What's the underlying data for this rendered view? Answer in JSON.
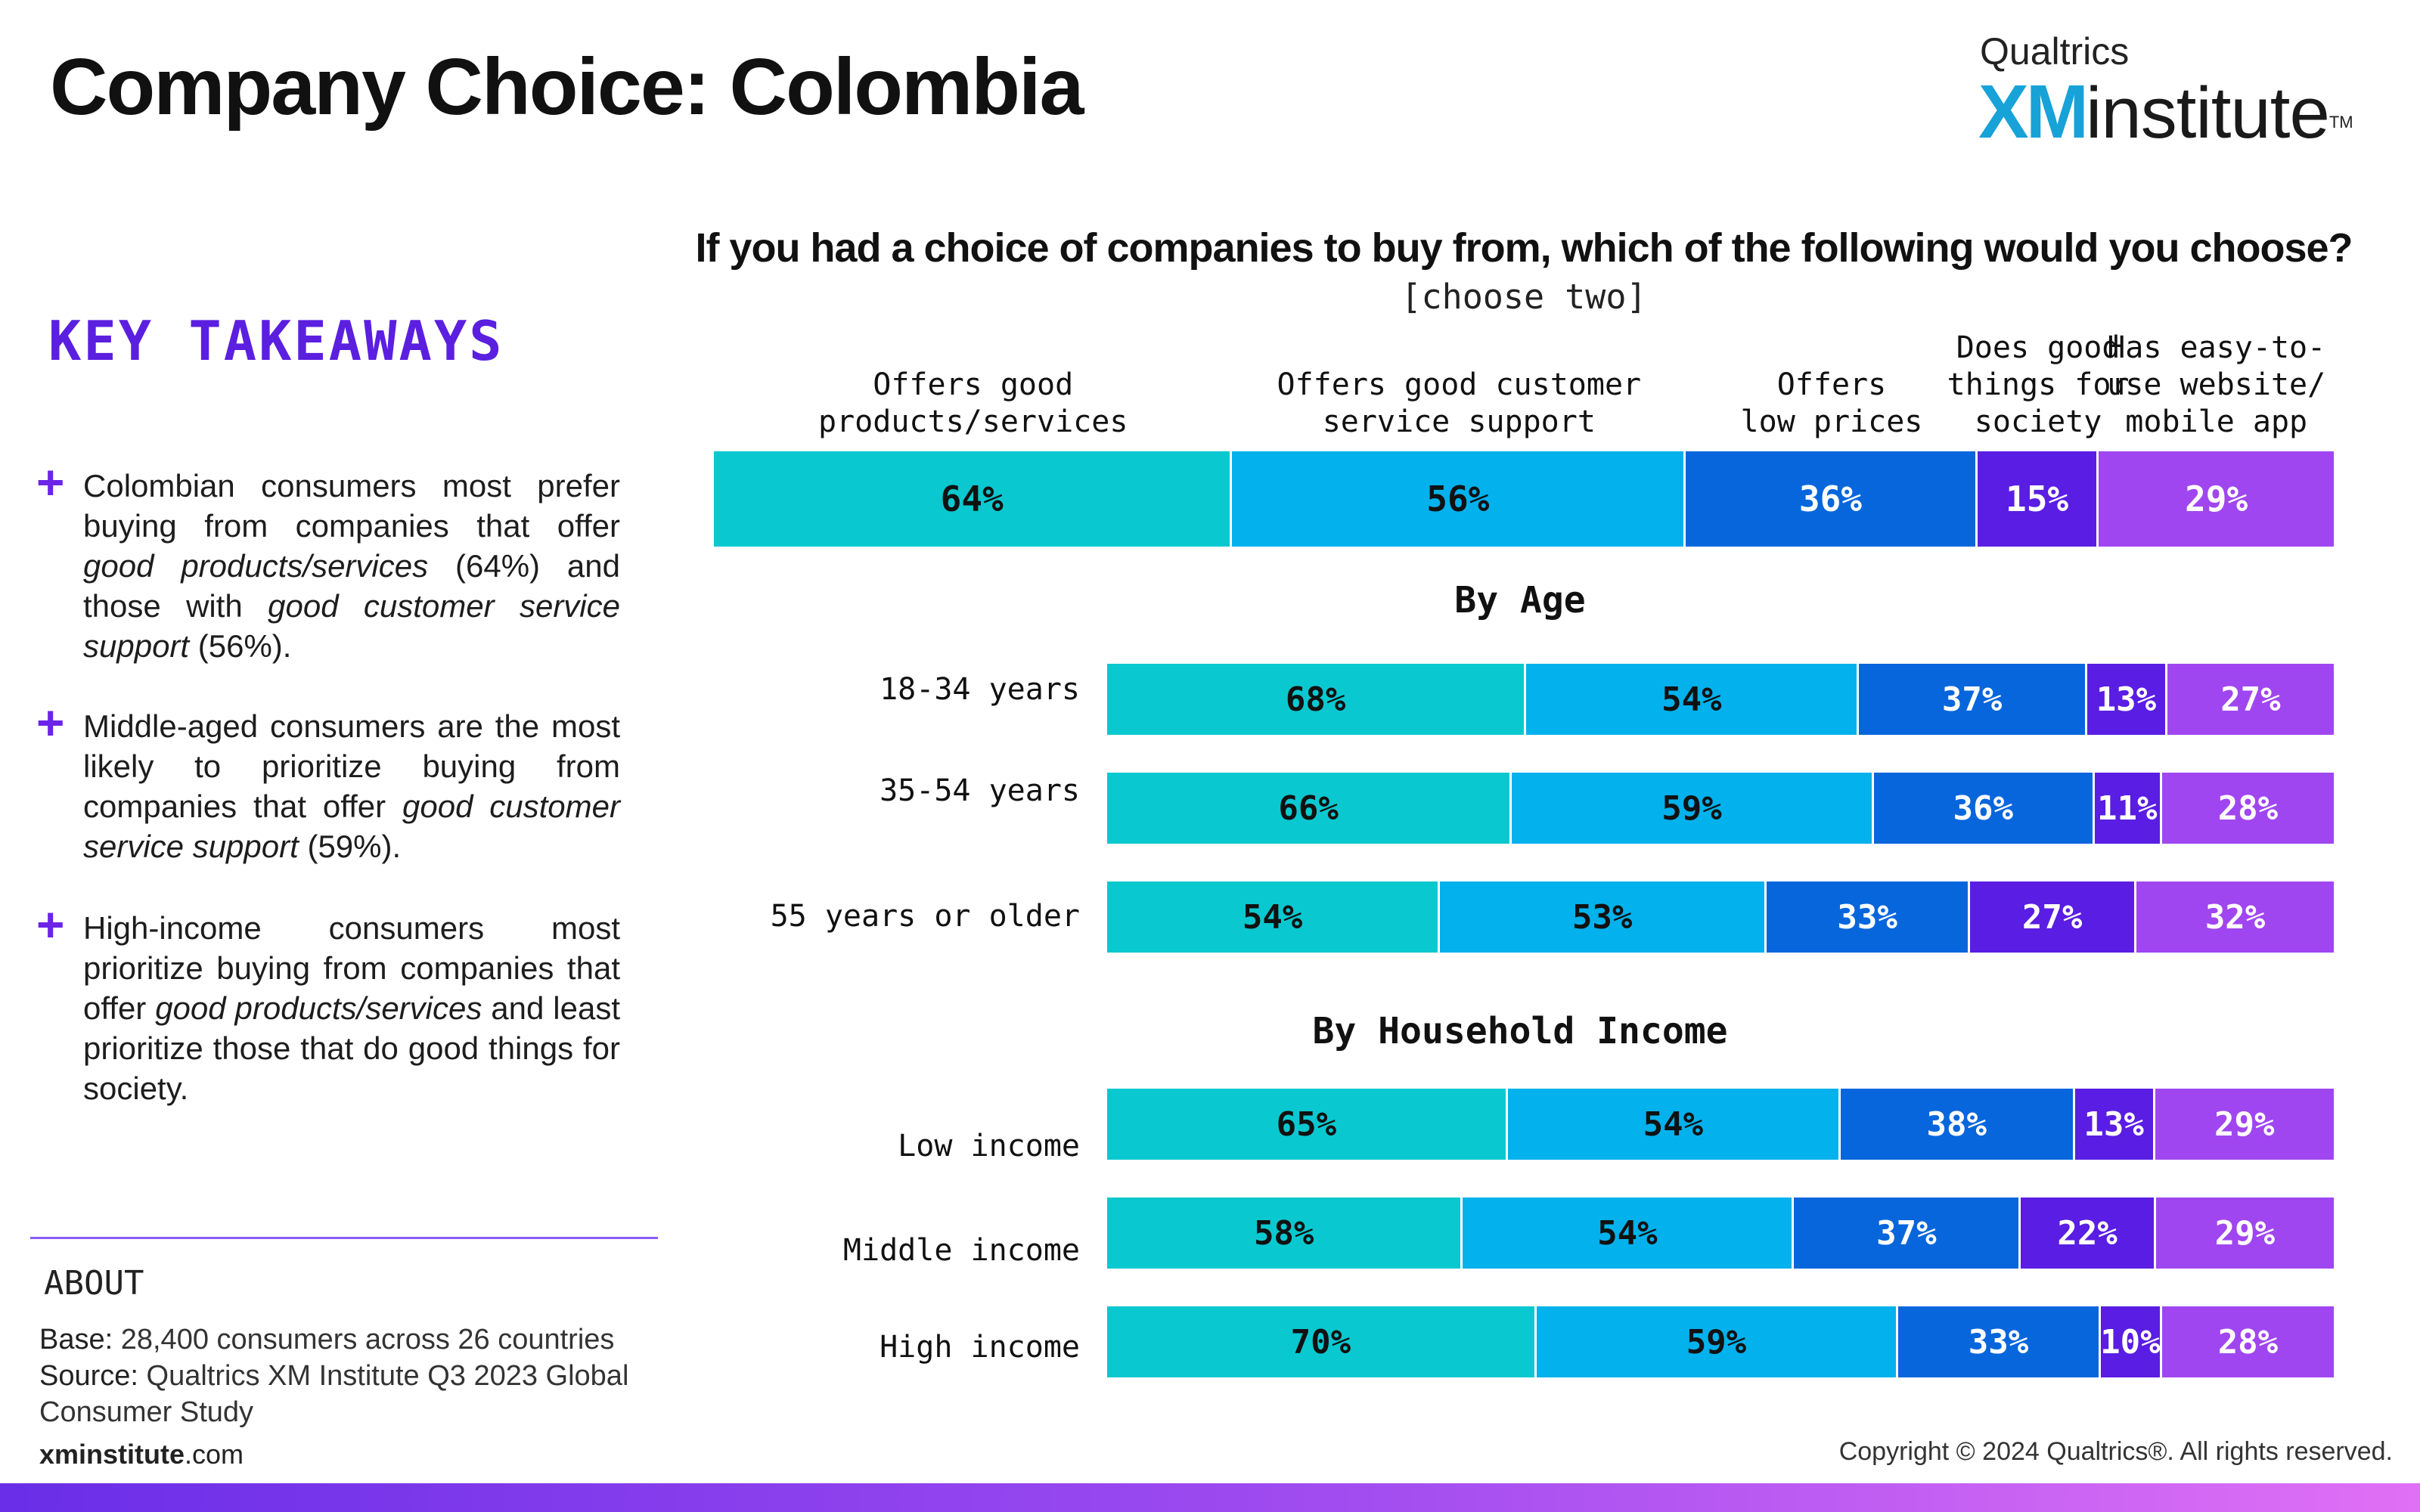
{
  "header": {
    "title": "Company Choice: Colombia",
    "logo_brand": "Qualtrics",
    "logo_xm": "XM",
    "logo_institute": "institute",
    "logo_tm": "TM"
  },
  "takeaways": {
    "heading": "KEY TAKEAWAYS",
    "items": [
      {
        "a": "Colombian consumers most prefer buying from companies that offer ",
        "b": "good products/services",
        "c": " (64%) and those with ",
        "d": "good customer service support",
        "e": " (56%)."
      },
      {
        "a": "Middle-aged consumers are the most likely to prioritize buying from companies that offer ",
        "b": "good customer service support",
        "c": " (59%)."
      },
      {
        "a": "High-income consumers most prioritize buying from companies that offer ",
        "b": "good products/services",
        "c": " and least prioritize those that do good things for society."
      }
    ]
  },
  "about": {
    "heading": "ABOUT",
    "base_label": "Base:",
    "base_text": " 28,400 consumers across 26 countries",
    "source_label": "Source:",
    "source_text": " Qualtrics XM Institute Q3 2023 Global Consumer Study",
    "site_bold": "xminstitute",
    "site_rest": ".com"
  },
  "footer": {
    "copyright": "Copyright © 2024 Qualtrics®. All rights reserved."
  },
  "chart_data": {
    "type": "bar",
    "stacked": true,
    "orientation": "horizontal",
    "title": "If you had a choice of companies to buy from, which of the following would you choose?",
    "subtitle": "[choose two]",
    "category_lines": [
      [
        "Offers good",
        "products/services"
      ],
      [
        "Offers good customer",
        "service support"
      ],
      [
        "Offers",
        "low prices"
      ],
      [
        "Does good",
        "things for",
        "society"
      ],
      [
        "Has easy-to-",
        "use website/",
        "mobile app"
      ]
    ],
    "categories": [
      "Offers good products/services",
      "Offers good customer service support",
      "Offers low prices",
      "Does good things for society",
      "Has easy-to-use website/mobile app"
    ],
    "colors": [
      "#0ac8cf",
      "#03b1ec",
      "#0866dc",
      "#5a1de3",
      "#a046f0"
    ],
    "text_colors": [
      "#111111",
      "#111111",
      "#ffffff",
      "#ffffff",
      "#ffffff"
    ],
    "total": {
      "label": "",
      "values": [
        64,
        56,
        36,
        15,
        29
      ]
    },
    "groups": [
      {
        "title": "By Age",
        "rows": [
          {
            "label": "18-34 years",
            "values": [
              68,
              54,
              37,
              13,
              27
            ]
          },
          {
            "label": "35-54 years",
            "values": [
              66,
              59,
              36,
              11,
              28
            ]
          },
          {
            "label": "55 years or older",
            "values": [
              54,
              53,
              33,
              27,
              32
            ]
          }
        ]
      },
      {
        "title": "By Household Income",
        "rows": [
          {
            "label": "Low income",
            "values": [
              65,
              54,
              38,
              13,
              29
            ]
          },
          {
            "label": "Middle income",
            "values": [
              58,
              54,
              37,
              22,
              29
            ]
          },
          {
            "label": "High income",
            "values": [
              70,
              59,
              33,
              10,
              28
            ]
          }
        ]
      }
    ]
  }
}
